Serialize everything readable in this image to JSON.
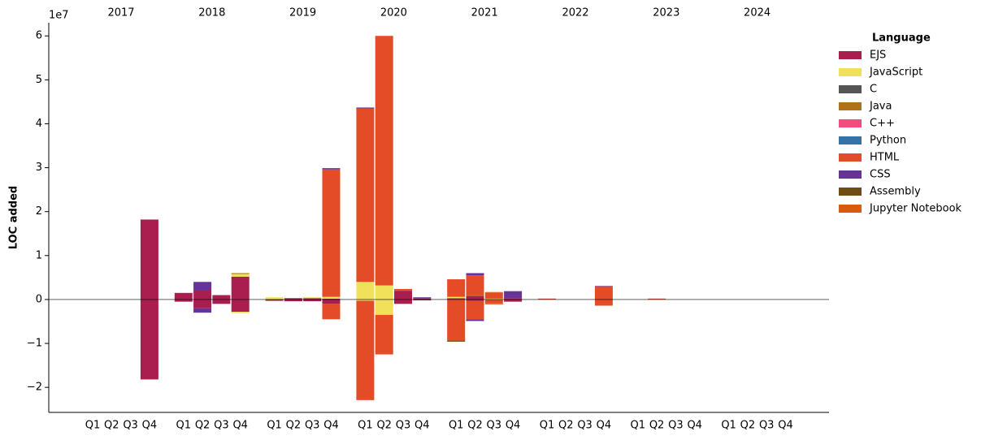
{
  "chart_data": {
    "type": "bar",
    "stacked": true,
    "y_label": "LOC added",
    "y_offset_label": "1e7",
    "legend_title": "Language",
    "legend": "upper right outside",
    "years": [
      "2017",
      "2018",
      "2019",
      "2020",
      "2021",
      "2022",
      "2023",
      "2024"
    ],
    "categories": [
      "Q1",
      "Q2",
      "Q3",
      "Q4",
      "Q1",
      "Q2",
      "Q3",
      "Q4",
      "Q1",
      "Q2",
      "Q3",
      "Q4",
      "Q1",
      "Q2",
      "Q3",
      "Q4",
      "Q1",
      "Q2",
      "Q3",
      "Q4",
      "Q1",
      "Q2",
      "Q3",
      "Q4",
      "Q1",
      "Q2",
      "Q3",
      "Q4",
      "Q1",
      "Q2",
      "Q3",
      "Q4"
    ],
    "ylim": [
      -2.57,
      6.3
    ],
    "yticks": [
      {
        "value": -2,
        "label": "−2"
      },
      {
        "value": -1,
        "label": "−1"
      },
      0,
      1,
      2,
      3,
      4,
      5,
      6
    ],
    "series": [
      {
        "name": "EJS",
        "color": "#a91e4f",
        "values": [
          0,
          0,
          0,
          1.82,
          0.15,
          0.22,
          0.1,
          0.52,
          0,
          0.03,
          0.03,
          0.02,
          0,
          0,
          0.2,
          0.03,
          0.03,
          0.08,
          0,
          0.03,
          0,
          0,
          0,
          0,
          0,
          0,
          0,
          0,
          0,
          0,
          0,
          0
        ],
        "removed_values": [
          0,
          0,
          0,
          -1.82,
          -0.05,
          -0.2,
          -0.1,
          -0.28,
          -0.03,
          -0.04,
          -0.04,
          -0.1,
          0,
          0,
          -0.1,
          -0.02,
          0,
          -0.03,
          0,
          -0.05,
          0,
          0,
          0,
          0,
          0,
          0,
          0,
          0,
          0,
          0,
          0,
          0
        ]
      },
      {
        "name": "JavaScript",
        "color": "#f1e05a",
        "values": [
          0,
          0,
          0,
          0,
          0,
          0,
          0,
          0.06,
          0.05,
          0,
          0.02,
          0.04,
          0.4,
          0.32,
          0,
          0,
          0.03,
          0,
          0.02,
          0,
          0,
          0,
          0,
          0,
          0,
          0,
          0,
          0,
          0,
          0,
          0,
          0
        ],
        "removed_values": [
          0,
          0,
          0,
          0,
          0,
          0,
          0,
          -0.03,
          0,
          0,
          0,
          0,
          -0.03,
          -0.35,
          0,
          0,
          0,
          0,
          0,
          0,
          0,
          0,
          0,
          0,
          0,
          0,
          0,
          0,
          0,
          0,
          0,
          0
        ]
      },
      {
        "name": "C",
        "color": "#555555",
        "values": [
          0,
          0,
          0,
          0,
          0,
          0,
          0,
          0,
          0,
          0,
          0,
          0,
          0,
          0,
          0,
          0,
          0,
          0,
          0,
          0,
          0,
          0,
          0,
          0,
          0,
          0,
          0,
          0,
          0,
          0,
          0,
          0
        ],
        "removed_values": [
          0,
          0,
          0,
          0,
          0,
          0,
          0,
          0,
          0,
          0,
          0,
          0,
          0,
          0,
          0,
          0,
          0,
          0,
          0,
          0,
          0,
          0,
          0,
          0,
          0,
          0,
          0,
          0,
          0,
          0,
          0,
          0
        ]
      },
      {
        "name": "Java",
        "color": "#b07219",
        "values": [
          0,
          0,
          0,
          0,
          0,
          0,
          0,
          0.02,
          0,
          0,
          0,
          0,
          0,
          0,
          0.02,
          0,
          0,
          0.02,
          0,
          0,
          0,
          0,
          0,
          0,
          0,
          0,
          0,
          0,
          0,
          0,
          0,
          0
        ],
        "removed_values": [
          0,
          0,
          0,
          0,
          0,
          0,
          0,
          0,
          0,
          0,
          0,
          0,
          0,
          0,
          0,
          0,
          0,
          0,
          0,
          0,
          0,
          0,
          0,
          0,
          0,
          0,
          0,
          0,
          0,
          0,
          0,
          0
        ]
      },
      {
        "name": "C++",
        "color": "#f34b7d",
        "values": [
          0,
          0,
          0,
          0,
          0,
          0,
          0,
          0,
          0,
          0,
          0,
          0,
          0,
          0,
          0,
          0,
          0,
          0,
          0,
          0,
          0,
          0,
          0,
          0,
          0,
          0,
          0,
          0,
          0,
          0,
          0,
          0
        ],
        "removed_values": [
          0,
          0,
          0,
          0,
          0,
          0,
          0,
          0,
          0,
          0,
          0,
          0,
          0,
          0,
          0,
          0,
          0,
          0,
          0,
          0,
          0,
          0,
          0,
          0,
          0,
          0,
          0,
          0,
          0,
          0,
          0,
          0
        ]
      },
      {
        "name": "Python",
        "color": "#3572a5",
        "values": [
          0,
          0,
          0,
          0,
          0,
          0,
          0,
          0,
          0,
          0,
          0,
          0,
          0,
          0,
          0,
          0,
          0,
          0,
          0,
          0,
          0,
          0,
          0,
          0,
          0,
          0,
          0,
          0,
          0,
          0,
          0,
          0
        ],
        "removed_values": [
          0,
          0,
          0,
          0,
          0,
          0,
          0,
          0,
          0,
          0,
          0,
          0,
          0,
          0,
          0,
          0,
          0,
          0,
          0,
          0,
          0,
          0,
          0,
          0,
          0,
          0,
          0,
          0,
          0,
          0,
          0,
          0
        ]
      },
      {
        "name": "HTML",
        "color": "#e34c26",
        "values": [
          0,
          0,
          0,
          0,
          0,
          0,
          0,
          0,
          0,
          0,
          0,
          2.9,
          3.95,
          5.68,
          0.02,
          0,
          0.4,
          0.45,
          0.13,
          0,
          0.02,
          0,
          0,
          0.3,
          0,
          0.02,
          0,
          0,
          0,
          0,
          0,
          0
        ],
        "removed_values": [
          0,
          0,
          0,
          0,
          0,
          0,
          0,
          0,
          0,
          0,
          0,
          -0.35,
          -2.26,
          -0.9,
          0,
          0,
          -0.93,
          -0.42,
          -0.08,
          0,
          0,
          0,
          0,
          -0.14,
          0,
          0,
          0,
          0,
          0,
          0,
          0,
          0
        ]
      },
      {
        "name": "CSS",
        "color": "#663399",
        "values": [
          0,
          0,
          0,
          0,
          0,
          0.18,
          0,
          0,
          0,
          0,
          0,
          0.03,
          0.02,
          0,
          0,
          0.02,
          0,
          0.05,
          0,
          0.16,
          0,
          0,
          0,
          0.01,
          0,
          0,
          0,
          0,
          0,
          0,
          0,
          0
        ],
        "removed_values": [
          0,
          0,
          0,
          0,
          0,
          -0.1,
          0,
          0,
          0,
          0,
          0,
          0,
          0,
          0,
          0,
          0,
          0,
          -0.04,
          0,
          0,
          0,
          0,
          0,
          0,
          0,
          0,
          0,
          0,
          0,
          0,
          0,
          0
        ]
      },
      {
        "name": "Assembly",
        "color": "#6e4c13",
        "values": [
          0,
          0,
          0,
          0,
          0,
          0,
          0,
          0,
          0,
          0,
          0,
          0,
          0,
          0,
          0,
          0,
          0,
          0,
          0,
          0,
          0,
          0,
          0,
          0,
          0,
          0,
          0,
          0,
          0,
          0,
          0,
          0
        ],
        "removed_values": [
          0,
          0,
          0,
          0,
          0,
          0,
          0,
          0,
          0,
          0,
          0,
          0,
          0,
          0,
          0,
          0,
          -0.03,
          0,
          0,
          0,
          0,
          0,
          0,
          0,
          0,
          0,
          0,
          0,
          0,
          0,
          0,
          0
        ]
      },
      {
        "name": "Jupyter Notebook",
        "color": "#da5b0b",
        "values": [
          0,
          0,
          0,
          0,
          0,
          0,
          0,
          0,
          0,
          0,
          0,
          0,
          0,
          0,
          0,
          0,
          0,
          0,
          0.02,
          0,
          0,
          0,
          0,
          0,
          0,
          0,
          0,
          0,
          0,
          0,
          0,
          0
        ],
        "removed_values": [
          0,
          0,
          0,
          0,
          0,
          0,
          0,
          0,
          0,
          0,
          0,
          0,
          0,
          0,
          0,
          0,
          0,
          0,
          -0.03,
          0,
          0,
          0,
          0,
          0,
          0,
          0,
          0,
          0,
          0,
          0,
          0,
          0
        ]
      }
    ]
  }
}
